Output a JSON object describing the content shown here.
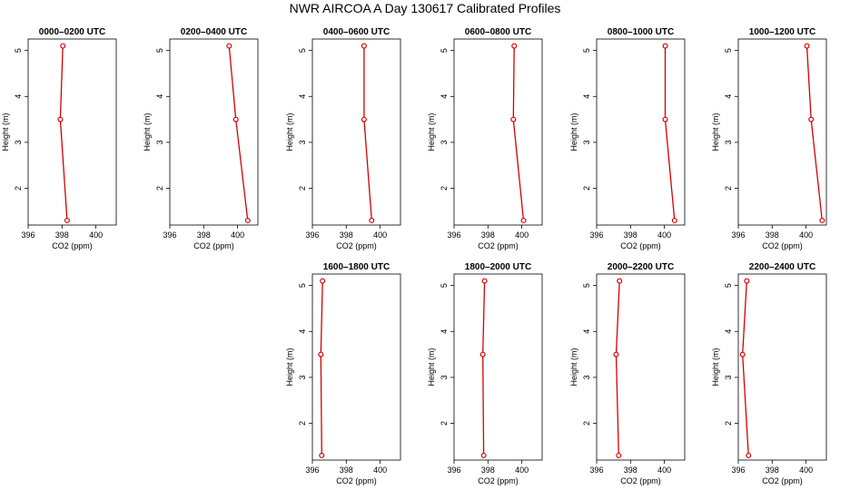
{
  "title": "NWR AIRCOA A  Day 130617  Calibrated Profiles",
  "colors": {
    "series": "#d40000",
    "axis": "#000000"
  },
  "chart_data": [
    {
      "type": "line",
      "title": "0000–0200 UTC",
      "xlabel": "CO2 (ppm)",
      "ylabel": "Height (m)",
      "xlim": [
        396,
        401.2
      ],
      "ylim": [
        1.2,
        5.25
      ],
      "x_ticks": [
        396,
        398,
        400
      ],
      "y_ticks": [
        2,
        3,
        4,
        5
      ],
      "grid": false,
      "series": [
        {
          "x": [
            398.3,
            397.9,
            398.05
          ],
          "y": [
            1.3,
            3.5,
            5.1
          ]
        }
      ]
    },
    {
      "type": "line",
      "title": "0200–0400 UTC",
      "xlabel": "CO2 (ppm)",
      "ylabel": "Height (m)",
      "xlim": [
        396,
        401.2
      ],
      "ylim": [
        1.2,
        5.25
      ],
      "x_ticks": [
        396,
        398,
        400
      ],
      "y_ticks": [
        2,
        3,
        4,
        5
      ],
      "grid": false,
      "series": [
        {
          "x": [
            400.6,
            399.9,
            399.5
          ],
          "y": [
            1.3,
            3.5,
            5.1
          ]
        }
      ]
    },
    {
      "type": "line",
      "title": "0400–0600 UTC",
      "xlabel": "CO2 (ppm)",
      "ylabel": "Height (m)",
      "xlim": [
        396,
        401.2
      ],
      "ylim": [
        1.2,
        5.25
      ],
      "x_ticks": [
        396,
        398,
        400
      ],
      "y_ticks": [
        2,
        3,
        4,
        5
      ],
      "grid": false,
      "series": [
        {
          "x": [
            399.5,
            399.05,
            399.05
          ],
          "y": [
            1.3,
            3.5,
            5.1
          ]
        }
      ]
    },
    {
      "type": "line",
      "title": "0600–0800 UTC",
      "xlabel": "CO2 (ppm)",
      "ylabel": "Height (m)",
      "xlim": [
        396,
        401.2
      ],
      "ylim": [
        1.2,
        5.25
      ],
      "x_ticks": [
        396,
        398,
        400
      ],
      "y_ticks": [
        2,
        3,
        4,
        5
      ],
      "grid": false,
      "series": [
        {
          "x": [
            400.1,
            399.5,
            399.55
          ],
          "y": [
            1.3,
            3.5,
            5.1
          ]
        }
      ]
    },
    {
      "type": "line",
      "title": "0800–1000 UTC",
      "xlabel": "CO2 (ppm)",
      "ylabel": "Height (m)",
      "xlim": [
        396,
        401.2
      ],
      "ylim": [
        1.2,
        5.25
      ],
      "x_ticks": [
        396,
        398,
        400
      ],
      "y_ticks": [
        2,
        3,
        4,
        5
      ],
      "grid": false,
      "series": [
        {
          "x": [
            400.6,
            400.05,
            400.05
          ],
          "y": [
            1.3,
            3.5,
            5.1
          ]
        }
      ]
    },
    {
      "type": "line",
      "title": "1000–1200 UTC",
      "xlabel": "CO2 (ppm)",
      "ylabel": "Height (m)",
      "xlim": [
        396,
        401.2
      ],
      "ylim": [
        1.2,
        5.25
      ],
      "x_ticks": [
        396,
        398,
        400
      ],
      "y_ticks": [
        2,
        3,
        4,
        5
      ],
      "grid": false,
      "series": [
        {
          "x": [
            400.95,
            400.3,
            400.05
          ],
          "y": [
            1.3,
            3.5,
            5.1
          ]
        }
      ]
    },
    {
      "type": "line",
      "title": "1600–1800 UTC",
      "xlabel": "CO2 (ppm)",
      "ylabel": "Height (m)",
      "xlim": [
        396,
        401.2
      ],
      "ylim": [
        1.2,
        5.25
      ],
      "x_ticks": [
        396,
        398,
        400
      ],
      "y_ticks": [
        2,
        3,
        4,
        5
      ],
      "grid": false,
      "series": [
        {
          "x": [
            396.55,
            396.5,
            396.6
          ],
          "y": [
            1.3,
            3.5,
            5.1
          ]
        }
      ]
    },
    {
      "type": "line",
      "title": "1800–2000 UTC",
      "xlabel": "CO2 (ppm)",
      "ylabel": "Height (m)",
      "xlim": [
        396,
        401.2
      ],
      "ylim": [
        1.2,
        5.25
      ],
      "x_ticks": [
        396,
        398,
        400
      ],
      "y_ticks": [
        2,
        3,
        4,
        5
      ],
      "grid": false,
      "series": [
        {
          "x": [
            397.75,
            397.7,
            397.8
          ],
          "y": [
            1.3,
            3.5,
            5.1
          ]
        }
      ]
    },
    {
      "type": "line",
      "title": "2000–2200 UTC",
      "xlabel": "CO2 (ppm)",
      "ylabel": "Height (m)",
      "xlim": [
        396,
        401.2
      ],
      "ylim": [
        1.2,
        5.25
      ],
      "x_ticks": [
        396,
        398,
        400
      ],
      "y_ticks": [
        2,
        3,
        4,
        5
      ],
      "grid": false,
      "series": [
        {
          "x": [
            397.3,
            397.15,
            397.35
          ],
          "y": [
            1.3,
            3.5,
            5.1
          ]
        }
      ]
    },
    {
      "type": "line",
      "title": "2200–2400 UTC",
      "xlabel": "CO2 (ppm)",
      "ylabel": "Height (m)",
      "xlim": [
        396,
        401.2
      ],
      "ylim": [
        1.2,
        5.25
      ],
      "x_ticks": [
        396,
        398,
        400
      ],
      "y_ticks": [
        2,
        3,
        4,
        5
      ],
      "grid": false,
      "series": [
        {
          "x": [
            396.6,
            396.25,
            396.5
          ],
          "y": [
            1.3,
            3.5,
            5.1
          ]
        }
      ]
    }
  ]
}
